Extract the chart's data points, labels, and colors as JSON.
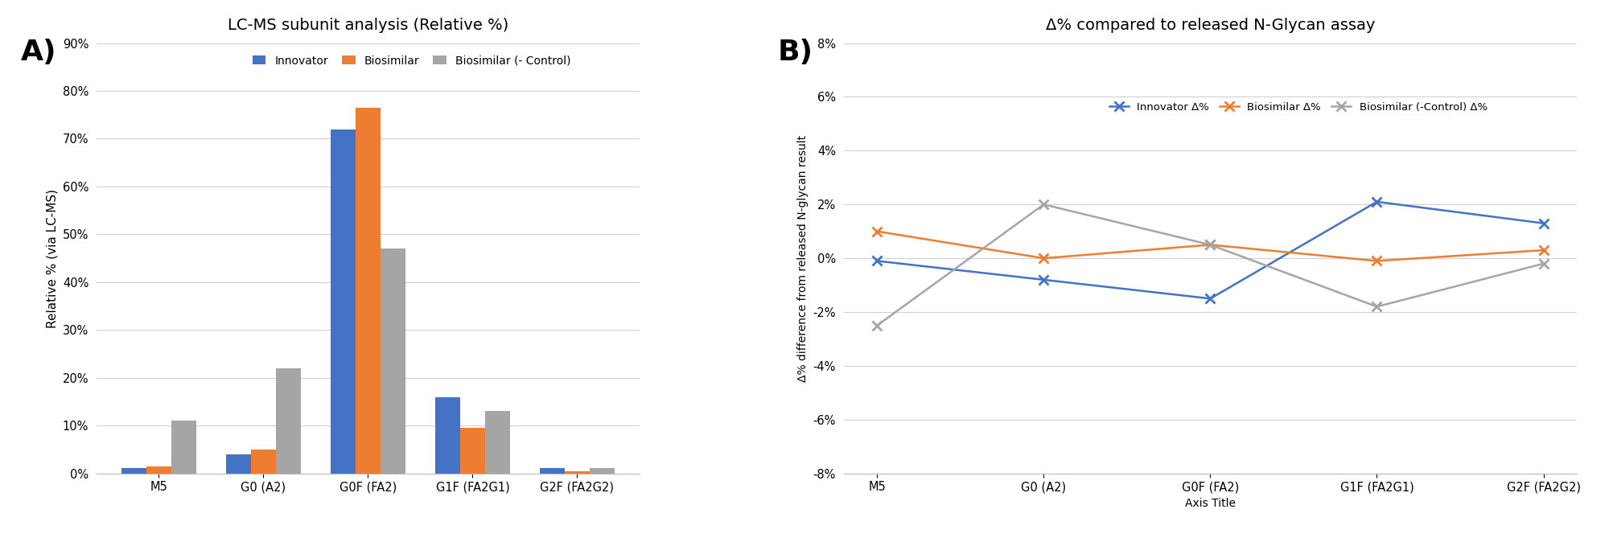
{
  "bar_categories": [
    "M5",
    "G0 (A2)",
    "G0F (FA2)",
    "G1F (FA2G1)",
    "G2F (FA2G2)"
  ],
  "bar_innovator": [
    1.2,
    4.0,
    72.0,
    16.0,
    1.2
  ],
  "bar_biosimilar": [
    1.5,
    5.0,
    76.5,
    9.5,
    0.5
  ],
  "bar_biosimilar_ctrl": [
    11.0,
    22.0,
    47.0,
    13.0,
    1.2
  ],
  "bar_colors": [
    "#4472c4",
    "#ed7d31",
    "#a5a5a5"
  ],
  "bar_title": "LC-MS subunit analysis (Relative %)",
  "bar_ylabel": "Relative % (via LC-MS)",
  "bar_ylim": [
    0,
    90
  ],
  "bar_yticks": [
    0,
    10,
    20,
    30,
    40,
    50,
    60,
    70,
    80,
    90
  ],
  "bar_legend": [
    "Innovator",
    "Biosimilar",
    "Biosimilar (- Control)"
  ],
  "line_categories": [
    "M5",
    "G0 (A2)",
    "G0F (FA2)",
    "G1F (FA2G1)",
    "G2F (FA2G2)"
  ],
  "line_innovator": [
    -0.1,
    -0.8,
    -1.5,
    2.1,
    1.3
  ],
  "line_biosimilar": [
    1.0,
    0.0,
    0.5,
    -0.1,
    0.3
  ],
  "line_biosimilar_ctrl": [
    -2.5,
    2.0,
    0.5,
    -1.8,
    -0.2
  ],
  "line_colors": [
    "#4472c4",
    "#ed7d31",
    "#a5a5a5"
  ],
  "line_title": "Δ% compared to released N-Glycan assay",
  "line_ylabel": "Δ% difference from released N-glycan result",
  "line_xlabel": "Axis Title",
  "line_ylim": [
    -8,
    8
  ],
  "line_yticks": [
    -8,
    -6,
    -4,
    -2,
    0,
    2,
    4,
    6,
    8
  ],
  "line_legend": [
    "Innovator Δ%",
    "Biosimilar Δ%",
    "Biosimilar (-Control) Δ%"
  ],
  "label_A": "A)",
  "label_B": "B)"
}
